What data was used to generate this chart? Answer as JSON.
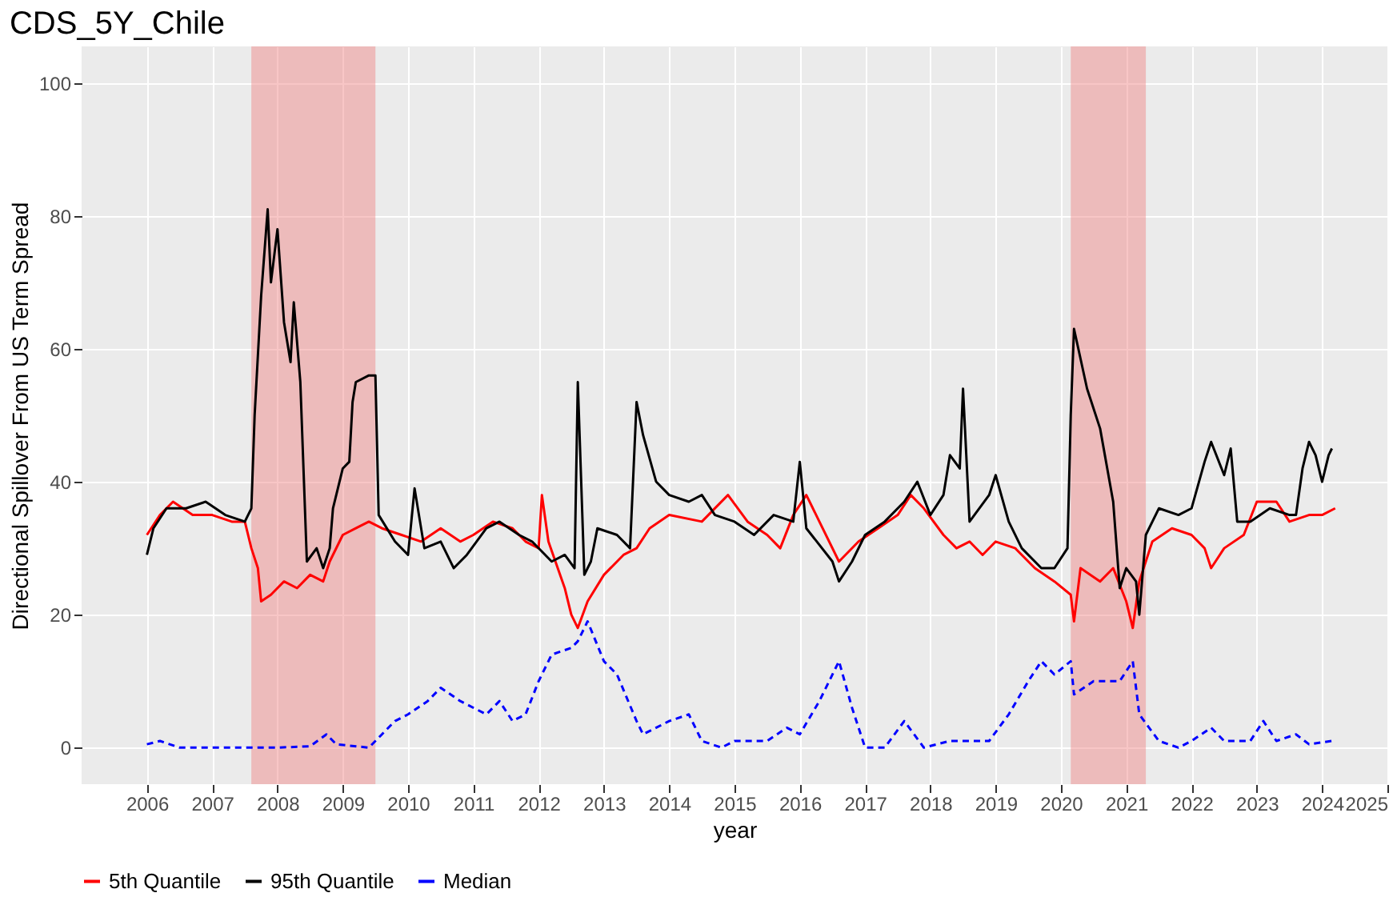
{
  "chart_data": {
    "type": "line",
    "title": "CDS_5Y_Chile",
    "xlabel": "year",
    "ylabel": "Directional Spillover From US Term Spread",
    "xlim": [
      2005.0,
      2025.0
    ],
    "xticks": [
      2006,
      2007,
      2008,
      2009,
      2010,
      2011,
      2012,
      2013,
      2014,
      2015,
      2016,
      2017,
      2018,
      2019,
      2020,
      2021,
      2022,
      2023,
      2024,
      2025
    ],
    "ylim": [
      -5.5,
      105.5
    ],
    "yticks": [
      0,
      20,
      40,
      60,
      80,
      100
    ],
    "grid": true,
    "legend": "bottom",
    "bands": [
      {
        "axis": "x",
        "from": 2007.6,
        "to": 2009.5,
        "color": "#f08080"
      },
      {
        "axis": "x",
        "from": 2020.15,
        "to": 2021.3,
        "color": "#f08080"
      }
    ],
    "series": [
      {
        "name": "5th Quantile",
        "color": "#ff0000",
        "line_style": "solid",
        "x": [
          2006.0,
          2006.2,
          2006.4,
          2006.7,
          2007.0,
          2007.3,
          2007.5,
          2007.6,
          2007.7,
          2007.75,
          2007.9,
          2008.1,
          2008.3,
          2008.5,
          2008.7,
          2008.8,
          2009.0,
          2009.2,
          2009.4,
          2009.6,
          2009.9,
          2010.2,
          2010.5,
          2010.8,
          2011.0,
          2011.3,
          2011.6,
          2011.8,
          2012.0,
          2012.05,
          2012.15,
          2012.4,
          2012.5,
          2012.6,
          2012.75,
          2013.0,
          2013.3,
          2013.5,
          2013.7,
          2014.0,
          2014.5,
          2014.9,
          2015.2,
          2015.5,
          2015.7,
          2015.9,
          2016.1,
          2016.3,
          2016.6,
          2016.9,
          2017.2,
          2017.5,
          2017.7,
          2017.9,
          2018.2,
          2018.4,
          2018.6,
          2018.8,
          2019.0,
          2019.3,
          2019.6,
          2019.9,
          2020.15,
          2020.2,
          2020.3,
          2020.6,
          2020.8,
          2021.0,
          2021.1,
          2021.2,
          2021.4,
          2021.7,
          2022.0,
          2022.2,
          2022.3,
          2022.5,
          2022.8,
          2023.0,
          2023.3,
          2023.5,
          2023.8,
          2024.0,
          2024.2
        ],
        "values": [
          32,
          35,
          37,
          35,
          35,
          34,
          34,
          30,
          27,
          22,
          23,
          25,
          24,
          26,
          25,
          28,
          32,
          33,
          34,
          33,
          32,
          31,
          33,
          31,
          32,
          34,
          33,
          31,
          30,
          38,
          31,
          24,
          20,
          18,
          22,
          26,
          29,
          30,
          33,
          35,
          34,
          38,
          34,
          32,
          30,
          35,
          38,
          34,
          28,
          31,
          33,
          35,
          38,
          36,
          32,
          30,
          31,
          29,
          31,
          30,
          27,
          25,
          23,
          19,
          27,
          25,
          27,
          22,
          18,
          25,
          31,
          33,
          32,
          30,
          27,
          30,
          32,
          37,
          37,
          34,
          35,
          35,
          36
        ]
      },
      {
        "name": "95th Quantile",
        "color": "#000000",
        "line_style": "solid",
        "x": [
          2006.0,
          2006.1,
          2006.3,
          2006.6,
          2006.9,
          2007.2,
          2007.5,
          2007.6,
          2007.65,
          2007.75,
          2007.85,
          2007.9,
          2008.0,
          2008.1,
          2008.2,
          2008.25,
          2008.35,
          2008.45,
          2008.6,
          2008.7,
          2008.8,
          2008.85,
          2009.0,
          2009.1,
          2009.15,
          2009.2,
          2009.4,
          2009.5,
          2009.55,
          2009.8,
          2010.0,
          2010.1,
          2010.25,
          2010.5,
          2010.7,
          2010.9,
          2011.2,
          2011.4,
          2011.7,
          2011.9,
          2012.2,
          2012.4,
          2012.55,
          2012.6,
          2012.7,
          2012.8,
          2012.9,
          2013.2,
          2013.4,
          2013.5,
          2013.6,
          2013.8,
          2014.0,
          2014.3,
          2014.5,
          2014.7,
          2015.0,
          2015.3,
          2015.6,
          2015.9,
          2016.0,
          2016.1,
          2016.5,
          2016.6,
          2016.8,
          2017.0,
          2017.3,
          2017.6,
          2017.8,
          2018.0,
          2018.2,
          2018.3,
          2018.45,
          2018.5,
          2018.6,
          2018.9,
          2019.0,
          2019.2,
          2019.4,
          2019.7,
          2019.9,
          2020.1,
          2020.15,
          2020.2,
          2020.4,
          2020.6,
          2020.8,
          2020.9,
          2021.0,
          2021.15,
          2021.2,
          2021.3,
          2021.5,
          2021.8,
          2022.0,
          2022.2,
          2022.3,
          2022.5,
          2022.6,
          2022.7,
          2022.9,
          2023.2,
          2023.5,
          2023.6,
          2023.7,
          2023.8,
          2023.9,
          2024.0,
          2024.1,
          2024.15
        ],
        "values": [
          29,
          33,
          36,
          36,
          37,
          35,
          34,
          36,
          50,
          68,
          81,
          70,
          78,
          64,
          58,
          67,
          55,
          28,
          30,
          27,
          30,
          36,
          42,
          43,
          52,
          55,
          56,
          56,
          35,
          31,
          29,
          39,
          30,
          31,
          27,
          29,
          33,
          34,
          32,
          31,
          28,
          29,
          27,
          55,
          26,
          28,
          33,
          32,
          30,
          52,
          47,
          40,
          38,
          37,
          38,
          35,
          34,
          32,
          35,
          34,
          43,
          33,
          28,
          25,
          28,
          32,
          34,
          37,
          40,
          35,
          38,
          44,
          42,
          54,
          34,
          38,
          41,
          34,
          30,
          27,
          27,
          30,
          50,
          63,
          54,
          48,
          37,
          24,
          27,
          25,
          20,
          32,
          36,
          35,
          36,
          43,
          46,
          41,
          45,
          34,
          34,
          36,
          35,
          35,
          42,
          46,
          44,
          40,
          44,
          45
        ]
      },
      {
        "name": "Median",
        "color": "#0000ff",
        "line_style": "dashed",
        "x": [
          2006.0,
          2006.2,
          2006.5,
          2007.0,
          2007.5,
          2008.0,
          2008.5,
          2008.75,
          2008.9,
          2009.4,
          2009.6,
          2009.8,
          2010.0,
          2010.3,
          2010.5,
          2010.8,
          2011.0,
          2011.2,
          2011.4,
          2011.6,
          2011.8,
          2012.0,
          2012.2,
          2012.5,
          2012.6,
          2012.75,
          2013.0,
          2013.2,
          2013.5,
          2013.6,
          2014.0,
          2014.3,
          2014.5,
          2014.8,
          2015.0,
          2015.5,
          2015.8,
          2016.0,
          2016.3,
          2016.6,
          2016.8,
          2017.0,
          2017.3,
          2017.6,
          2017.9,
          2018.3,
          2018.9,
          2019.2,
          2019.5,
          2019.7,
          2019.9,
          2020.15,
          2020.2,
          2020.5,
          2020.9,
          2021.1,
          2021.2,
          2021.5,
          2021.8,
          2022.0,
          2022.3,
          2022.5,
          2022.9,
          2023.1,
          2023.3,
          2023.6,
          2023.8,
          2024.15
        ],
        "values": [
          0.5,
          1,
          0,
          0,
          0,
          0,
          0.2,
          2,
          0.5,
          0,
          2,
          4,
          5,
          7,
          9,
          7,
          6,
          5,
          7,
          4,
          5,
          10,
          14,
          15,
          16,
          19,
          13,
          11,
          4,
          2,
          4,
          5,
          1,
          0,
          1,
          1,
          3,
          2,
          7,
          13,
          6,
          0,
          0,
          4,
          0,
          1,
          1,
          5,
          10,
          13,
          11,
          13,
          8,
          10,
          10,
          13,
          5,
          1,
          0,
          1,
          3,
          1,
          1,
          4,
          1,
          2,
          0.5,
          1
        ]
      }
    ]
  }
}
